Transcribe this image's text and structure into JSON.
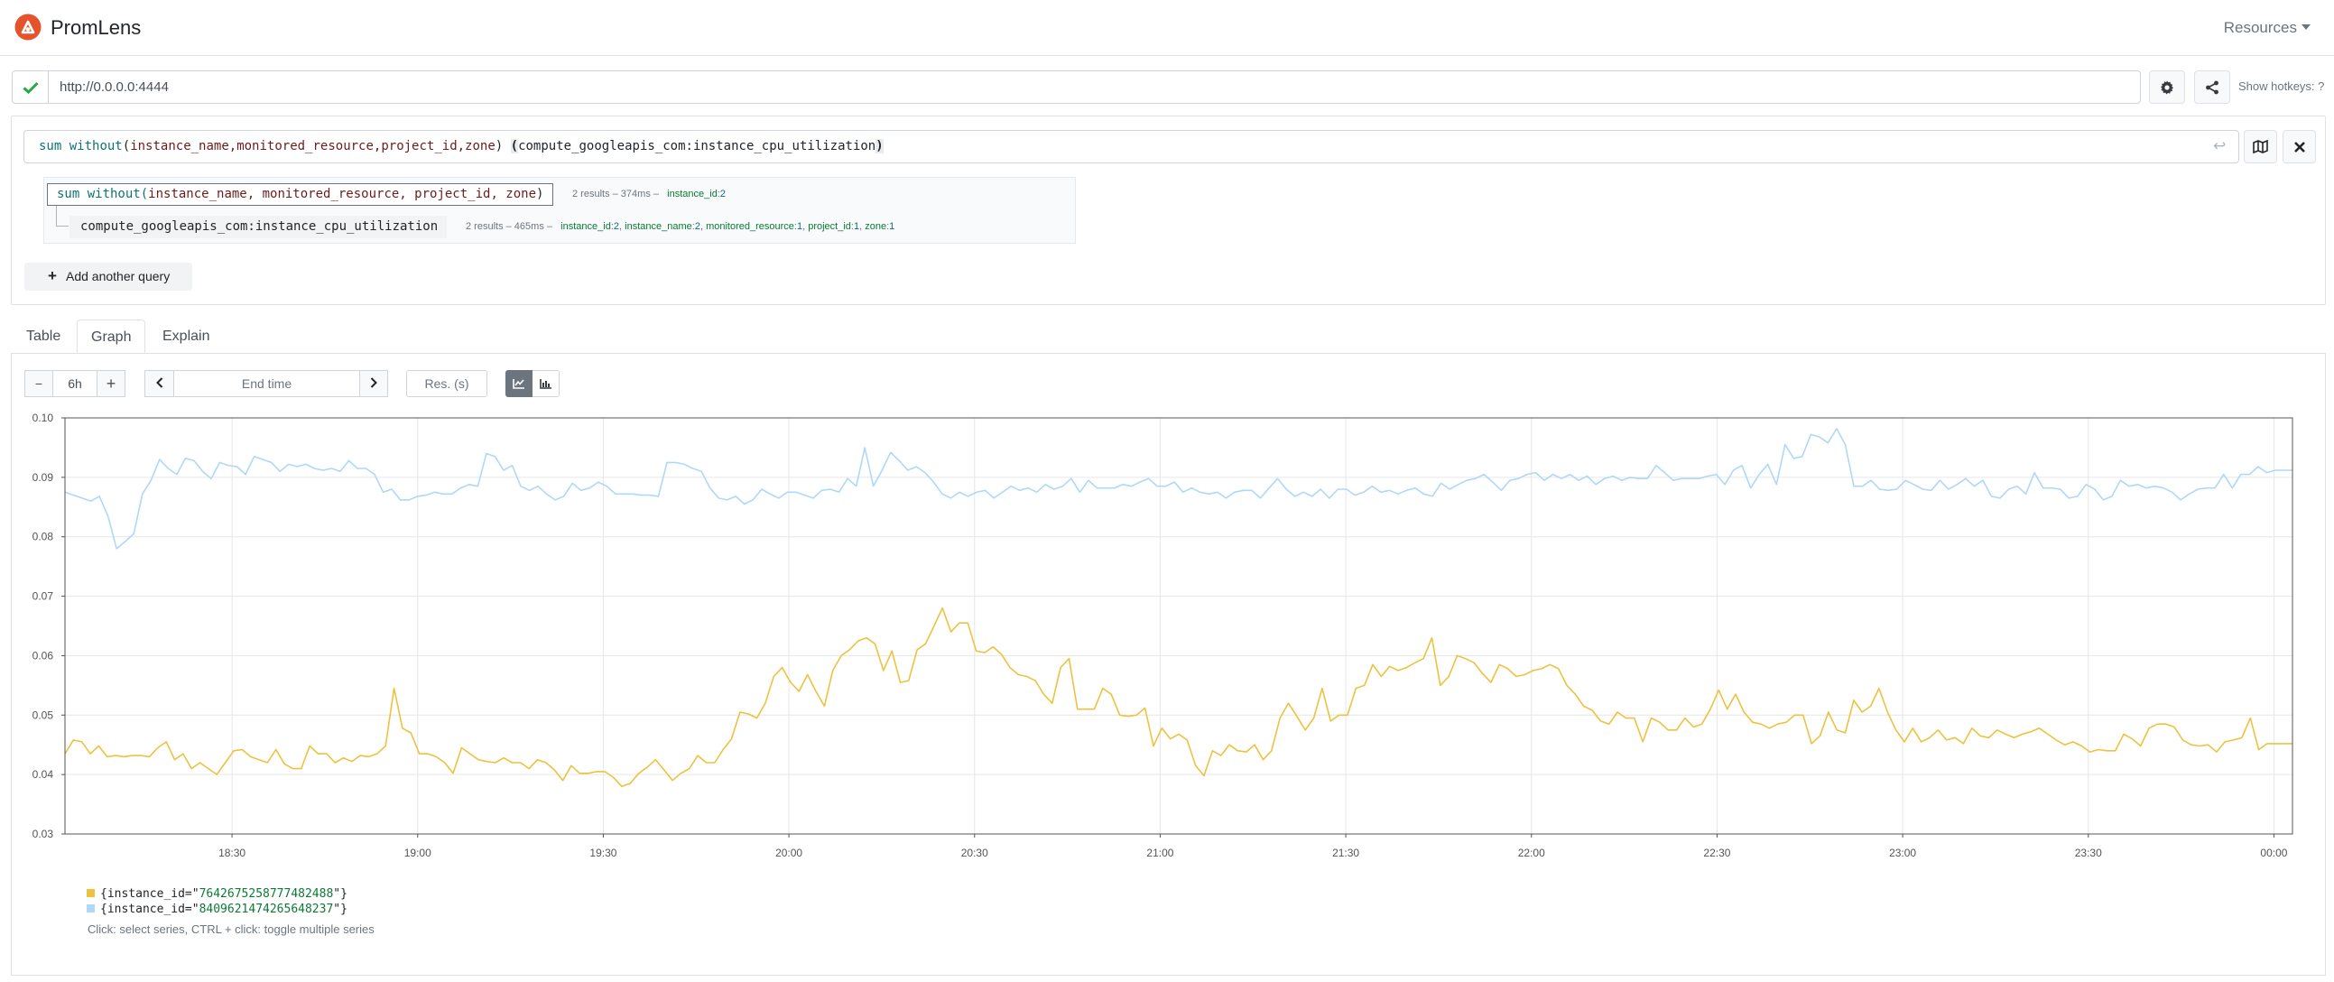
{
  "app": {
    "brand": "PromLens",
    "resources_label": "Resources"
  },
  "server": {
    "url": "http://0.0.0.0:4444",
    "hotkeys_label": "Show hotkeys: ?"
  },
  "query": {
    "expression_parts": {
      "func": "sum",
      "without": "without",
      "open": "(",
      "labels": "instance_name,monitored_resource,project_id,zone",
      "close": ")",
      "space": " ",
      "paren_open": "(",
      "metric": "compute_googleapis_com:instance_cpu_utilization",
      "paren_close": ")"
    },
    "tree": [
      {
        "prefix": "sum without(",
        "labels": "instance_name, monitored_resource, project_id, zone",
        "suffix": ")",
        "stats": "2 results – 374ms –",
        "labels_summary": [
          {
            "name": "instance_id",
            "count": "2"
          }
        ]
      },
      {
        "metric": "compute_googleapis_com:instance_cpu_utilization",
        "stats": "2 results – 465ms –",
        "labels_summary": [
          {
            "name": "instance_id",
            "count": "2",
            "sep": ","
          },
          {
            "name": "instance_name",
            "count": "2",
            "sep": ","
          },
          {
            "name": "monitored_resource",
            "count": "1",
            "sep": ","
          },
          {
            "name": "project_id",
            "count": "1",
            "sep": ","
          },
          {
            "name": "zone",
            "count": "1",
            "sep": ""
          }
        ]
      }
    ],
    "add_query_label": "Add another query"
  },
  "tabs": [
    {
      "label": "Table",
      "active": false
    },
    {
      "label": "Graph",
      "active": true
    },
    {
      "label": "Explain",
      "active": false
    }
  ],
  "graph_controls": {
    "range": "6h",
    "minus": "−",
    "plus": "+",
    "end_time_placeholder": "End time",
    "resolution_placeholder": "Res. (s)"
  },
  "chart_data": {
    "type": "line",
    "title": "",
    "xlabel": "",
    "ylabel": "",
    "ylim": [
      0.03,
      0.1
    ],
    "y_ticks": [
      "0.03",
      "0.04",
      "0.05",
      "0.06",
      "0.07",
      "0.08",
      "0.09",
      "0.10"
    ],
    "x_ticks": [
      "18:30",
      "19:00",
      "19:30",
      "20:00",
      "20:30",
      "21:00",
      "21:30",
      "22:00",
      "22:30",
      "23:00",
      "23:30",
      "00:00"
    ],
    "x_start_minutes": 1083,
    "x_end_minutes": 1443,
    "grid": true,
    "series": [
      {
        "name": "{instance_id=\"7642675258777482488\"}",
        "color": "#edc240",
        "values": [
          0.0435,
          0.0458,
          0.0455,
          0.0435,
          0.0448,
          0.043,
          0.0432,
          0.043,
          0.0432,
          0.0432,
          0.043,
          0.0445,
          0.0455,
          0.0425,
          0.0435,
          0.041,
          0.042,
          0.041,
          0.04,
          0.042,
          0.044,
          0.0442,
          0.043,
          0.0425,
          0.042,
          0.0442,
          0.0418,
          0.041,
          0.041,
          0.0448,
          0.0435,
          0.0435,
          0.042,
          0.0428,
          0.0422,
          0.0432,
          0.043,
          0.0435,
          0.0448,
          0.0545,
          0.0478,
          0.047,
          0.0435,
          0.0435,
          0.043,
          0.042,
          0.0402,
          0.0445,
          0.0435,
          0.0425,
          0.0422,
          0.042,
          0.0428,
          0.042,
          0.042,
          0.041,
          0.0425,
          0.042,
          0.0408,
          0.039,
          0.0415,
          0.0402,
          0.0402,
          0.0405,
          0.0405,
          0.0395,
          0.038,
          0.0385,
          0.0402,
          0.0412,
          0.0425,
          0.0408,
          0.039,
          0.0402,
          0.041,
          0.0432,
          0.042,
          0.042,
          0.0442,
          0.046,
          0.0505,
          0.0502,
          0.0495,
          0.052,
          0.0565,
          0.058,
          0.0555,
          0.054,
          0.0568,
          0.054,
          0.0515,
          0.0575,
          0.06,
          0.061,
          0.0625,
          0.063,
          0.062,
          0.0575,
          0.0608,
          0.0555,
          0.0558,
          0.061,
          0.062,
          0.065,
          0.068,
          0.064,
          0.0655,
          0.0655,
          0.0608,
          0.0605,
          0.0615,
          0.0602,
          0.058,
          0.0568,
          0.0565,
          0.0558,
          0.0535,
          0.052,
          0.058,
          0.0595,
          0.051,
          0.051,
          0.051,
          0.0545,
          0.0535,
          0.05,
          0.0498,
          0.05,
          0.0512,
          0.0448,
          0.0478,
          0.046,
          0.0468,
          0.0458,
          0.0415,
          0.0398,
          0.044,
          0.0432,
          0.045,
          0.044,
          0.0438,
          0.045,
          0.0425,
          0.044,
          0.0495,
          0.052,
          0.0498,
          0.0475,
          0.0495,
          0.0545,
          0.049,
          0.05,
          0.05,
          0.0545,
          0.055,
          0.0585,
          0.0565,
          0.0582,
          0.0575,
          0.058,
          0.0588,
          0.0595,
          0.063,
          0.055,
          0.0565,
          0.06,
          0.0595,
          0.0588,
          0.057,
          0.0555,
          0.0585,
          0.0578,
          0.0565,
          0.0568,
          0.0575,
          0.0578,
          0.0585,
          0.0578,
          0.055,
          0.0535,
          0.0515,
          0.0508,
          0.049,
          0.0485,
          0.0505,
          0.0495,
          0.0495,
          0.0455,
          0.0495,
          0.0488,
          0.0475,
          0.0475,
          0.0495,
          0.048,
          0.0485,
          0.051,
          0.0542,
          0.051,
          0.0535,
          0.0505,
          0.0488,
          0.0485,
          0.0478,
          0.0485,
          0.0488,
          0.05,
          0.05,
          0.0452,
          0.0465,
          0.0505,
          0.0475,
          0.047,
          0.0525,
          0.0505,
          0.0515,
          0.0545,
          0.0505,
          0.0475,
          0.0455,
          0.0478,
          0.0455,
          0.0462,
          0.0475,
          0.0458,
          0.0462,
          0.0452,
          0.0478,
          0.0465,
          0.0462,
          0.0475,
          0.0468,
          0.0462,
          0.0468,
          0.0472,
          0.0478,
          0.0468,
          0.0458,
          0.045,
          0.0455,
          0.0448,
          0.0438,
          0.0442,
          0.044,
          0.044,
          0.0468,
          0.046,
          0.0448,
          0.0478,
          0.0485,
          0.0485,
          0.048,
          0.0458,
          0.045,
          0.0448,
          0.045,
          0.0438,
          0.0455,
          0.0458,
          0.0462,
          0.0495,
          0.0442,
          0.0452,
          0.0452,
          0.0452,
          0.0452
        ]
      },
      {
        "name": "{instance_id=\"8409621474265648237\"}",
        "color": "#afd8f8",
        "values": [
          0.0875,
          0.087,
          0.0865,
          0.086,
          0.0868,
          0.0835,
          0.078,
          0.0792,
          0.0805,
          0.0872,
          0.0895,
          0.093,
          0.0915,
          0.0905,
          0.0932,
          0.0928,
          0.091,
          0.0898,
          0.0925,
          0.092,
          0.0918,
          0.0905,
          0.0935,
          0.093,
          0.0925,
          0.091,
          0.0922,
          0.0918,
          0.0922,
          0.0915,
          0.0912,
          0.0915,
          0.091,
          0.0928,
          0.0915,
          0.0915,
          0.0905,
          0.0875,
          0.088,
          0.0862,
          0.0862,
          0.0868,
          0.087,
          0.0875,
          0.0872,
          0.0872,
          0.0882,
          0.0888,
          0.0885,
          0.094,
          0.0935,
          0.0912,
          0.092,
          0.0885,
          0.0878,
          0.0885,
          0.0872,
          0.0862,
          0.0868,
          0.089,
          0.0878,
          0.0882,
          0.0892,
          0.0885,
          0.0872,
          0.0872,
          0.0872,
          0.087,
          0.087,
          0.0868,
          0.0925,
          0.0925,
          0.0922,
          0.0915,
          0.091,
          0.0882,
          0.0865,
          0.0862,
          0.0868,
          0.0855,
          0.0862,
          0.088,
          0.0872,
          0.0865,
          0.0875,
          0.0875,
          0.087,
          0.0865,
          0.0878,
          0.088,
          0.0875,
          0.0898,
          0.0885,
          0.095,
          0.0885,
          0.0912,
          0.0942,
          0.0928,
          0.0912,
          0.0918,
          0.0908,
          0.0892,
          0.0872,
          0.0865,
          0.0875,
          0.0868,
          0.0875,
          0.0878,
          0.0865,
          0.0875,
          0.0885,
          0.0878,
          0.0882,
          0.0875,
          0.0888,
          0.088,
          0.0885,
          0.0898,
          0.0875,
          0.0895,
          0.0882,
          0.0882,
          0.0882,
          0.0888,
          0.0885,
          0.0892,
          0.0898,
          0.0885,
          0.0885,
          0.0892,
          0.0875,
          0.0882,
          0.0875,
          0.0872,
          0.0875,
          0.0865,
          0.0875,
          0.0878,
          0.0878,
          0.0865,
          0.0882,
          0.0898,
          0.088,
          0.0868,
          0.0875,
          0.0868,
          0.088,
          0.0865,
          0.088,
          0.088,
          0.087,
          0.0875,
          0.0885,
          0.0875,
          0.0878,
          0.0872,
          0.0878,
          0.0882,
          0.0872,
          0.0868,
          0.089,
          0.088,
          0.0888,
          0.0895,
          0.0898,
          0.0905,
          0.0892,
          0.0878,
          0.0895,
          0.0898,
          0.0905,
          0.0908,
          0.0895,
          0.0905,
          0.0898,
          0.0905,
          0.0895,
          0.0902,
          0.0888,
          0.0898,
          0.0902,
          0.0895,
          0.09,
          0.0898,
          0.0898,
          0.092,
          0.0908,
          0.0895,
          0.0898,
          0.0898,
          0.0898,
          0.0902,
          0.0905,
          0.0888,
          0.0912,
          0.092,
          0.0882,
          0.0905,
          0.0922,
          0.0888,
          0.0955,
          0.0932,
          0.0935,
          0.0972,
          0.0968,
          0.0958,
          0.0982,
          0.0955,
          0.0885,
          0.0885,
          0.0895,
          0.088,
          0.0878,
          0.088,
          0.0895,
          0.0888,
          0.088,
          0.0878,
          0.0895,
          0.088,
          0.0888,
          0.0898,
          0.0885,
          0.0895,
          0.0868,
          0.0865,
          0.088,
          0.0885,
          0.0872,
          0.0908,
          0.0882,
          0.0882,
          0.088,
          0.0865,
          0.0868,
          0.0888,
          0.088,
          0.0862,
          0.0868,
          0.0895,
          0.0885,
          0.0888,
          0.0882,
          0.0885,
          0.0882,
          0.0875,
          0.0862,
          0.0872,
          0.088,
          0.0882,
          0.0882,
          0.0905,
          0.0882,
          0.0905,
          0.0905,
          0.0918,
          0.0908,
          0.0912,
          0.0912,
          0.0912
        ]
      }
    ]
  },
  "legend_hint": "Click: select series, CTRL + click: toggle multiple series"
}
